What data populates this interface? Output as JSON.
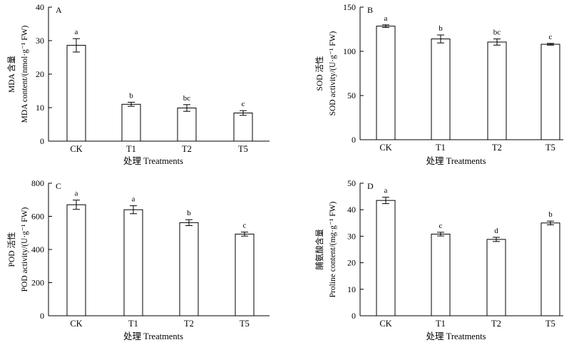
{
  "chart_data": [
    {
      "type": "bar",
      "panel_label": "A",
      "categories": [
        "CK",
        "T1",
        "T2",
        "T5"
      ],
      "values": [
        28.6,
        11.0,
        9.9,
        8.4
      ],
      "errors": [
        2.0,
        0.6,
        1.0,
        0.7
      ],
      "significance": [
        "a",
        "b",
        "bc",
        "c"
      ],
      "ylabel_line1": "MDA 含量",
      "ylabel_line2": "MDA content/(nmol·g⁻¹ FW)",
      "xlabel": "处理 Treatments",
      "ylim": [
        0,
        40
      ],
      "yticks": [
        0,
        10,
        20,
        30,
        40
      ]
    },
    {
      "type": "bar",
      "panel_label": "B",
      "categories": [
        "CK",
        "T1",
        "T2",
        "T5"
      ],
      "values": [
        128.5,
        114.0,
        110.5,
        108.0
      ],
      "errors": [
        1.5,
        4.5,
        3.5,
        1.0
      ],
      "significance": [
        "a",
        "b",
        "bc",
        "c"
      ],
      "ylabel_line1": "SOD 活性",
      "ylabel_line2": "SOD activity/(U·g⁻¹ FW)",
      "xlabel": "处理 Treatments",
      "ylim": [
        0,
        150
      ],
      "yticks": [
        0,
        50,
        100,
        150
      ]
    },
    {
      "type": "bar",
      "panel_label": "C",
      "categories": [
        "CK",
        "T1",
        "T2",
        "T5"
      ],
      "values": [
        670,
        640,
        562,
        493
      ],
      "errors": [
        28,
        24,
        18,
        12
      ],
      "significance": [
        "a",
        "a",
        "b",
        "c"
      ],
      "ylabel_line1": "POD 活性",
      "ylabel_line2": "POD activity/(U·g⁻¹ FW)",
      "xlabel": "处理 Treatments",
      "ylim": [
        0,
        800
      ],
      "yticks": [
        0,
        200,
        400,
        600,
        800
      ]
    },
    {
      "type": "bar",
      "panel_label": "D",
      "categories": [
        "CK",
        "T1",
        "T2",
        "T5"
      ],
      "values": [
        43.5,
        30.8,
        28.8,
        35.0
      ],
      "errors": [
        1.2,
        0.7,
        0.8,
        0.7
      ],
      "significance": [
        "a",
        "c",
        "d",
        "b"
      ],
      "ylabel_line1": "脯氨酸含量",
      "ylabel_line2": "Proline content/(mg·g⁻¹ FW)",
      "xlabel": "处理 Treatments",
      "ylim": [
        0,
        50
      ],
      "yticks": [
        0,
        10,
        20,
        30,
        40,
        50
      ]
    }
  ]
}
